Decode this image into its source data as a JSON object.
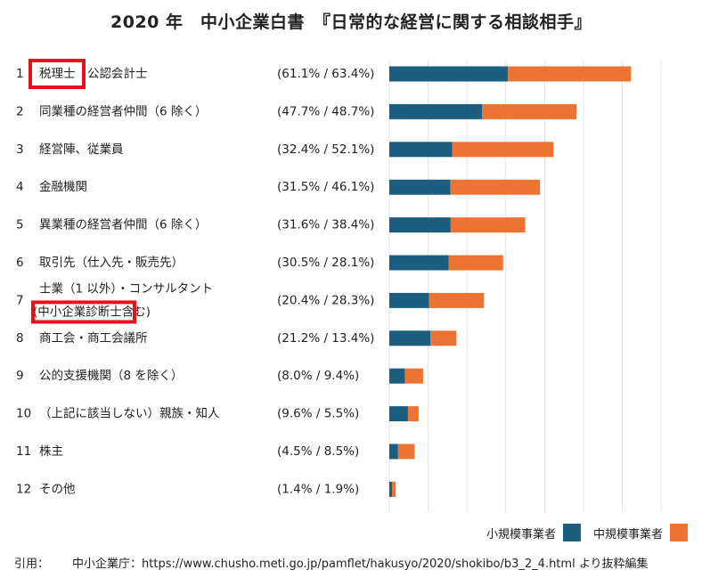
{
  "title": "2020 年　中小企業白書　『日常的な経営に関する相談相手』",
  "chart_data": {
    "type": "bar",
    "stacked": true,
    "orientation": "horizontal",
    "categories": [
      {
        "rank": "1",
        "label": "税理士　公認会計士",
        "highlight": "税理士",
        "pair": "(61.1% / 63.4%)"
      },
      {
        "rank": "2",
        "label": "同業種の経営者仲間（6 除く）",
        "pair": "(47.7% / 48.7%)"
      },
      {
        "rank": "3",
        "label": "経営陣、従業員",
        "pair": "(32.4% / 52.1%)"
      },
      {
        "rank": "4",
        "label": "金融機関",
        "pair": "(31.5% / 46.1%)"
      },
      {
        "rank": "5",
        "label": "異業種の経営者仲間（6 除く）",
        "pair": "(31.6% / 38.4%)"
      },
      {
        "rank": "6",
        "label": "取引先（仕入先・販売先）",
        "pair": "(30.5% / 28.1%)"
      },
      {
        "rank": "7",
        "label": "士業（1 以外）・コンサルタント",
        "label2": "(中小企業診断士含む)",
        "highlight": "中小企業診断士",
        "pair": "(20.4% / 28.3%)"
      },
      {
        "rank": "8",
        "label": "商工会・商工会議所",
        "pair": "(21.2% / 13.4%)"
      },
      {
        "rank": "9",
        "label": "公的支援機関（8 を除く）",
        "pair": "(8.0% / 9.4%)"
      },
      {
        "rank": "10",
        "label": "（上記に該当しない）親族・知人",
        "pair": "(9.6% / 5.5%)"
      },
      {
        "rank": "11",
        "label": "株主",
        "pair": "(4.5% / 8.5%)"
      },
      {
        "rank": "12",
        "label": "その他",
        "pair": "(1.4% / 1.9%)"
      }
    ],
    "series": [
      {
        "name": "小規模事業者",
        "color": "#1b5e80",
        "values": [
          61.1,
          47.7,
          32.4,
          31.5,
          31.6,
          30.5,
          20.4,
          21.2,
          8.0,
          9.6,
          4.5,
          1.4
        ]
      },
      {
        "name": "中規模事業者",
        "color": "#ec7432",
        "values": [
          63.4,
          48.7,
          52.1,
          46.1,
          38.4,
          28.1,
          28.3,
          13.4,
          9.4,
          5.5,
          8.5,
          1.9
        ]
      }
    ],
    "grid": true,
    "legend_position": "bottom-right",
    "highlight_color": "#e8111b"
  },
  "source": {
    "label": "引用：",
    "text": "中小企業庁：https://www.chusho.meti.go.jp/pamflet/hakusyo/2020/shokibo/b3_2_4.html より抜粋編集"
  }
}
